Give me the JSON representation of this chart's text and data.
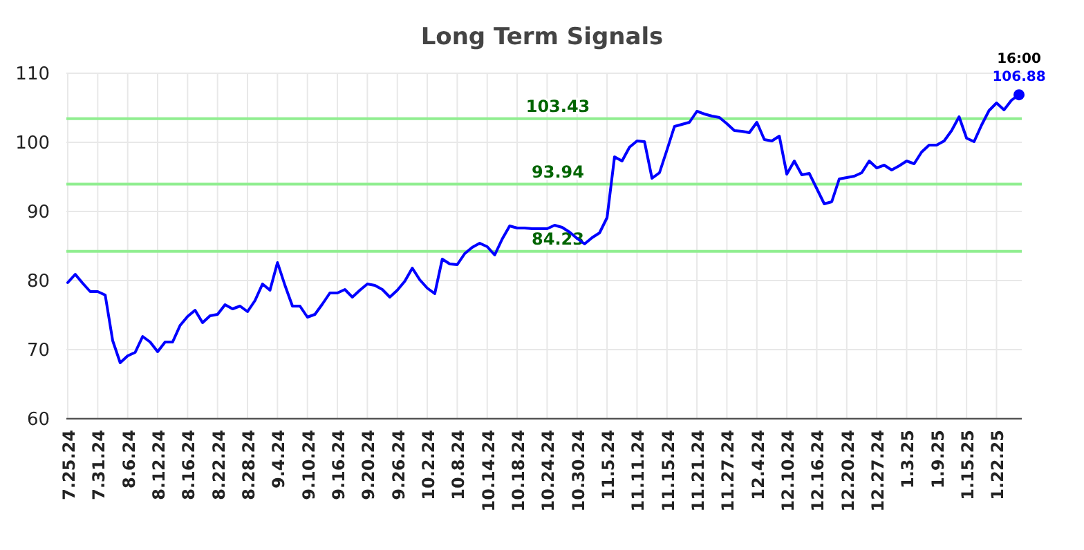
{
  "chart_data": {
    "type": "line",
    "title": "Long Term Signals",
    "categories": [
      "7.25.24",
      null,
      null,
      null,
      "7.31.24",
      null,
      null,
      null,
      "8.6.24",
      null,
      null,
      null,
      "8.12.24",
      null,
      null,
      null,
      "8.16.24",
      null,
      null,
      null,
      "8.22.24",
      null,
      null,
      null,
      "8.28.24",
      null,
      null,
      null,
      "9.4.24",
      null,
      null,
      null,
      "9.10.24",
      null,
      null,
      null,
      "9.16.24",
      null,
      null,
      null,
      "9.20.24",
      null,
      null,
      null,
      "9.26.24",
      null,
      null,
      null,
      "10.2.24",
      null,
      null,
      null,
      "10.8.24",
      null,
      null,
      null,
      "10.14.24",
      null,
      null,
      null,
      "10.18.24",
      null,
      null,
      null,
      "10.24.24",
      null,
      null,
      null,
      "10.30.24",
      null,
      null,
      null,
      "11.5.24",
      null,
      null,
      null,
      "11.11.24",
      null,
      null,
      null,
      "11.15.24",
      null,
      null,
      null,
      "11.21.24",
      null,
      null,
      null,
      "11.27.24",
      null,
      null,
      null,
      "12.4.24",
      null,
      null,
      null,
      "12.10.24",
      null,
      null,
      null,
      "12.16.24",
      null,
      null,
      null,
      "12.20.24",
      null,
      null,
      null,
      "12.27.24",
      null,
      null,
      null,
      "1.3.25",
      null,
      null,
      null,
      "1.9.25",
      null,
      null,
      null,
      "1.15.25",
      null,
      null,
      null,
      "1.22.25",
      null,
      null,
      null
    ],
    "series": [
      {
        "color": "#0000ff",
        "values": [
          79.7,
          80.9,
          79.6,
          78.4,
          78.4,
          77.9,
          71.3,
          68.1,
          69.1,
          69.6,
          71.9,
          71.1,
          69.7,
          71.1,
          71.1,
          73.5,
          74.8,
          75.7,
          73.9,
          74.9,
          75.1,
          76.5,
          75.9,
          76.3,
          75.5,
          77.1,
          79.5,
          78.6,
          82.6,
          79.3,
          76.3,
          76.3,
          74.7,
          75.1,
          76.6,
          78.2,
          78.2,
          78.7,
          77.6,
          78.6,
          79.5,
          79.3,
          78.7,
          77.6,
          78.6,
          79.9,
          81.8,
          80.1,
          78.9,
          78.1,
          83.1,
          82.4,
          82.3,
          83.9,
          84.8,
          85.4,
          84.9,
          83.7,
          86.0,
          87.9,
          87.6,
          87.6,
          87.5,
          87.5,
          87.5,
          88.0,
          87.7,
          87.0,
          86.1,
          85.3,
          86.2,
          86.9,
          89.1,
          97.9,
          97.3,
          99.3,
          100.2,
          100.1,
          94.8,
          95.6,
          98.9,
          102.3,
          102.6,
          102.9,
          104.5,
          104.1,
          103.8,
          103.6,
          102.7,
          101.7,
          101.6,
          101.4,
          102.9,
          100.4,
          100.2,
          100.9,
          95.4,
          97.3,
          95.3,
          95.5,
          93.3,
          91.1,
          91.4,
          94.7,
          94.9,
          95.1,
          95.6,
          97.3,
          96.3,
          96.7,
          96.0,
          96.6,
          97.3,
          96.9,
          98.6,
          99.6,
          99.6,
          100.2,
          101.7,
          103.7,
          100.6,
          100.1,
          102.5,
          104.6,
          105.7,
          104.7,
          106.1,
          106.88
        ],
        "value_labels": [
          null,
          null,
          null,
          null,
          null,
          null,
          null,
          null,
          null,
          null,
          null,
          null,
          null,
          null,
          null,
          null,
          null,
          null,
          null,
          null,
          null,
          null,
          null,
          null,
          null,
          null,
          null,
          null,
          null,
          null,
          null,
          null,
          null,
          null,
          null,
          null,
          null,
          null,
          null,
          null,
          null,
          null,
          null,
          null,
          null,
          null,
          null,
          null,
          null,
          null,
          null,
          null,
          null,
          null,
          null,
          null,
          null,
          null,
          null,
          null,
          null,
          null,
          null,
          null,
          null,
          null,
          null,
          null,
          null,
          null,
          null,
          null,
          null,
          null,
          null,
          null,
          null,
          null,
          null,
          null,
          null,
          null,
          null,
          null,
          null,
          null,
          null,
          null,
          null,
          null,
          null,
          null,
          null,
          null,
          null,
          null,
          null,
          null,
          null,
          null,
          null,
          null,
          null,
          null,
          null,
          null,
          null,
          null,
          null,
          null,
          null,
          null,
          null,
          null,
          null,
          null,
          null,
          null,
          null,
          null,
          null,
          null,
          null,
          null,
          null,
          null,
          null,
          "106.88"
        ]
      }
    ],
    "ylim": [
      60,
      110
    ],
    "yticks": [
      60,
      70,
      80,
      90,
      100,
      110
    ],
    "grid": true,
    "ref_lines": [
      {
        "axis": "y",
        "value": 103.43,
        "label": "103.43",
        "color": "#90ee90"
      },
      {
        "axis": "y",
        "value": 93.94,
        "label": "93.94",
        "color": "#90ee90"
      },
      {
        "axis": "y",
        "value": 84.23,
        "label": "84.23",
        "color": "#90ee90"
      }
    ],
    "annotations": [
      "16:00"
    ]
  }
}
